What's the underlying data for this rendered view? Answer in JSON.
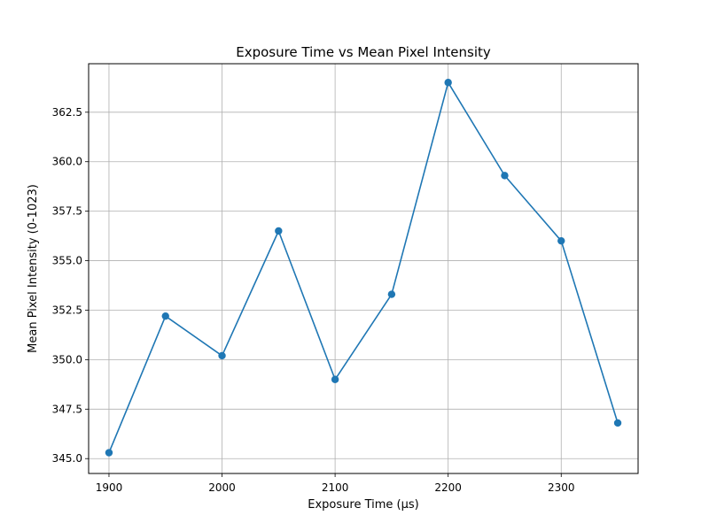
{
  "chart_data": {
    "type": "line",
    "title": "Exposure Time vs Mean Pixel Intensity",
    "xlabel": "Exposure Time (µs)",
    "ylabel": "Mean Pixel Intensity (0-1023)",
    "xlim": [
      1882,
      2368
    ],
    "ylim": [
      344.25,
      364.95
    ],
    "xticks": [
      1900,
      2000,
      2100,
      2200,
      2300
    ],
    "xtick_labels": [
      "1900",
      "2000",
      "2100",
      "2200",
      "2300"
    ],
    "yticks": [
      345.0,
      347.5,
      350.0,
      352.5,
      355.0,
      357.5,
      360.0,
      362.5
    ],
    "ytick_labels": [
      "345.0",
      "347.5",
      "350.0",
      "352.5",
      "355.0",
      "357.5",
      "360.0",
      "362.5"
    ],
    "grid": true,
    "series": [
      {
        "x": [
          1900,
          1950,
          2000,
          2050,
          2100,
          2150,
          2200,
          2250,
          2300,
          2350
        ],
        "y": [
          345.3,
          352.2,
          350.2,
          356.5,
          349.0,
          353.3,
          364.0,
          359.3,
          356.0,
          346.8
        ],
        "color": "#1f77b4"
      }
    ]
  }
}
